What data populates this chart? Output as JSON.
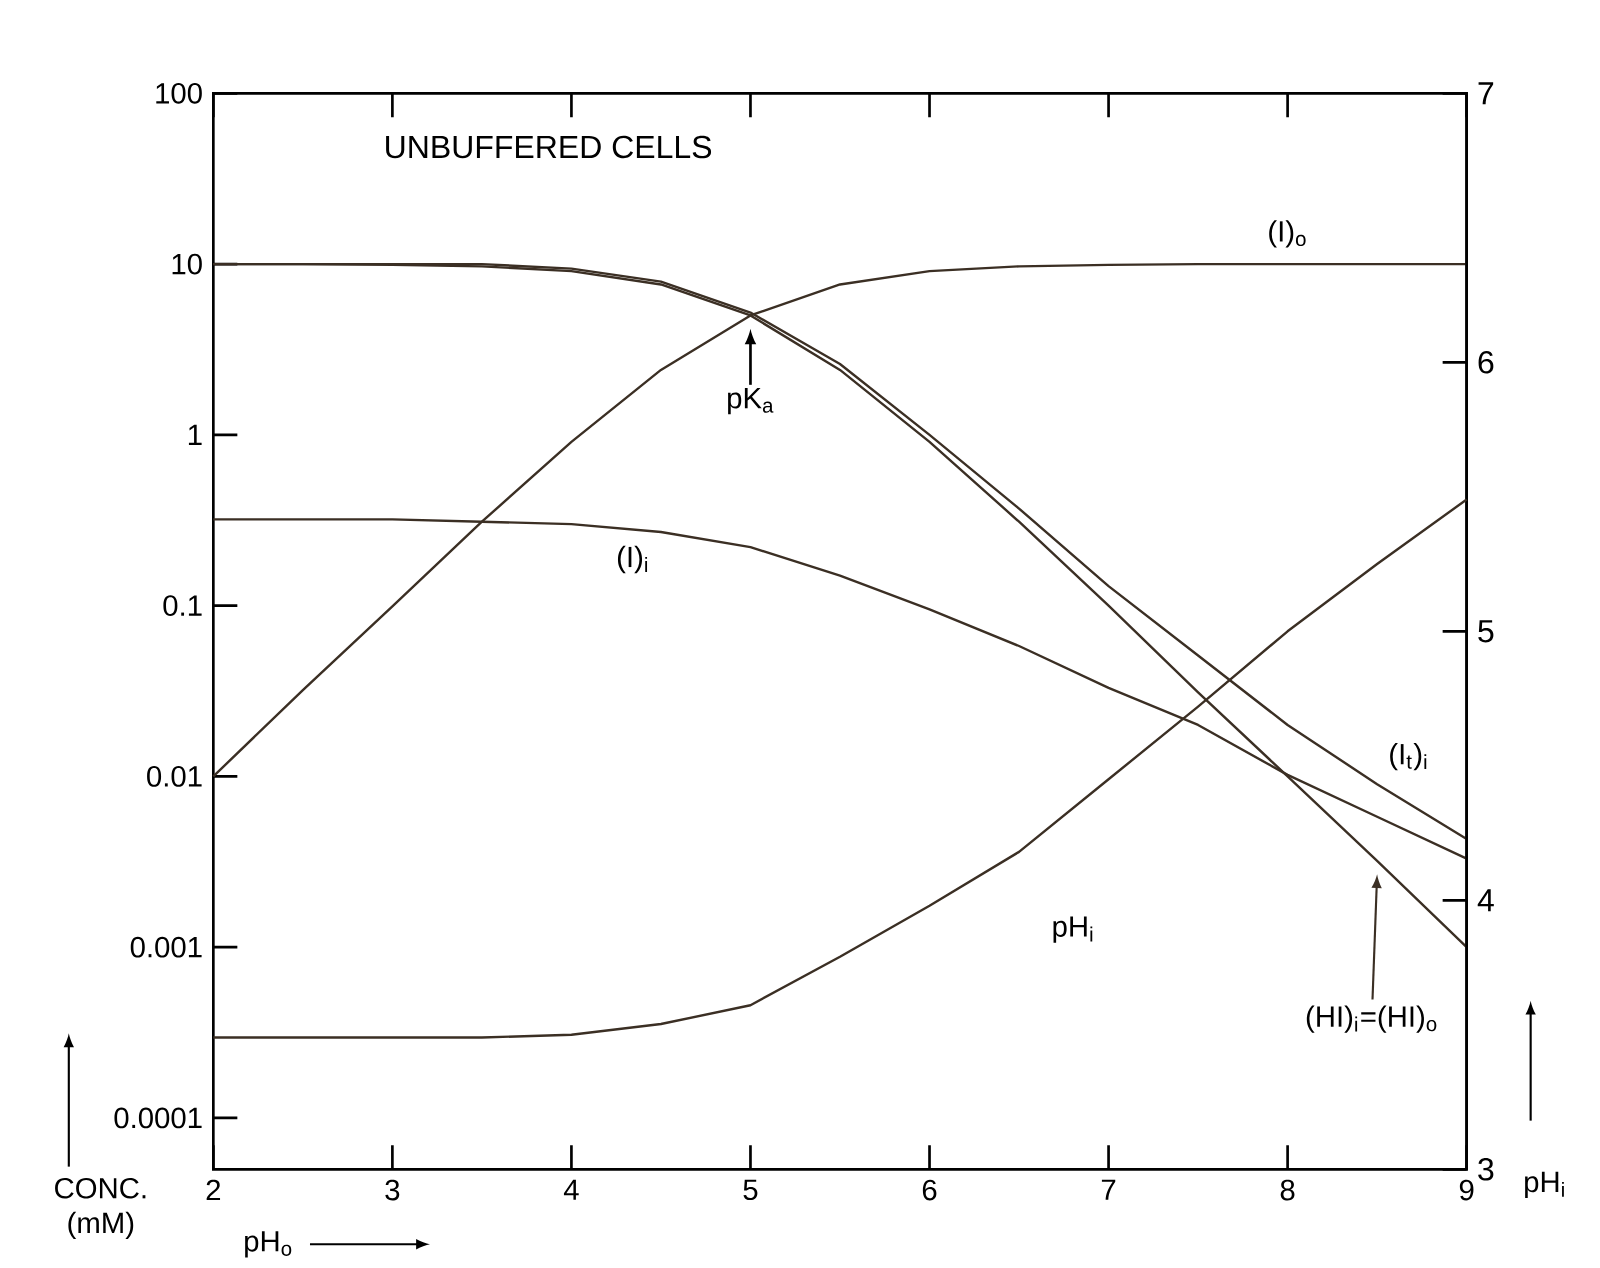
{
  "chart_data": {
    "type": "line",
    "title": "UNBUFFERED CELLS",
    "xlabel": "pH$_{o}$",
    "ylabel": "CONC. (mM)",
    "y2label": "pH$_{i}$",
    "x": [
      2,
      2.5,
      3,
      3.5,
      4,
      4.5,
      5,
      5.5,
      6,
      6.5,
      7,
      7.5,
      8,
      8.5,
      9
    ],
    "xlim": [
      2,
      9
    ],
    "xticks": [
      2,
      3,
      4,
      5,
      6,
      7,
      8,
      9
    ],
    "ylim": [
      5e-05,
      100
    ],
    "yticks": [
      0.0001,
      0.001,
      0.01,
      0.1,
      1,
      10,
      100
    ],
    "log": "y",
    "y2lim": [
      3,
      7
    ],
    "y2ticks": [
      3,
      4,
      5,
      6,
      7
    ],
    "series": [
      {
        "name": "(HI)$_{i}$=(HI)$_{o}$",
        "color": "#3b2f24",
        "values": [
          10,
          10,
          9.9,
          9.7,
          9.1,
          7.6,
          5,
          2.4,
          0.91,
          0.31,
          0.1,
          0.031,
          0.01,
          0.0032,
          0.001
        ]
      },
      {
        "name": "(I)$_{o}$",
        "color": "#3b2f24",
        "values": [
          0.01,
          0.032,
          0.099,
          0.31,
          0.91,
          2.4,
          5,
          7.6,
          9.1,
          9.7,
          9.9,
          10,
          10,
          10,
          10
        ]
      },
      {
        "name": "(I)$_{i}$",
        "color": "#3b2f24",
        "values": [
          0.32,
          0.32,
          0.32,
          0.31,
          0.3,
          0.27,
          0.22,
          0.15,
          0.095,
          0.058,
          0.033,
          0.02,
          0.0102,
          0.0058,
          0.0033
        ]
      },
      {
        "name": "(I$_{t}$)$_{i}$",
        "color": "#3b2f24",
        "values": [
          10,
          10,
          10,
          10,
          9.4,
          7.9,
          5.2,
          2.6,
          1.0,
          0.37,
          0.13,
          0.051,
          0.02,
          0.009,
          0.0043
        ]
      },
      {
        "name": "pH$_{i}$",
        "color": "#3b2f24",
        "axis": "y2",
        "values": [
          3.49,
          3.49,
          3.49,
          3.49,
          3.5,
          3.54,
          3.61,
          3.79,
          3.98,
          4.18,
          4.45,
          4.72,
          5.0,
          5.25,
          5.49
        ]
      }
    ],
    "annotations": [
      {
        "text": "pK$_{a}$",
        "x": 5,
        "y": 5
      }
    ]
  }
}
